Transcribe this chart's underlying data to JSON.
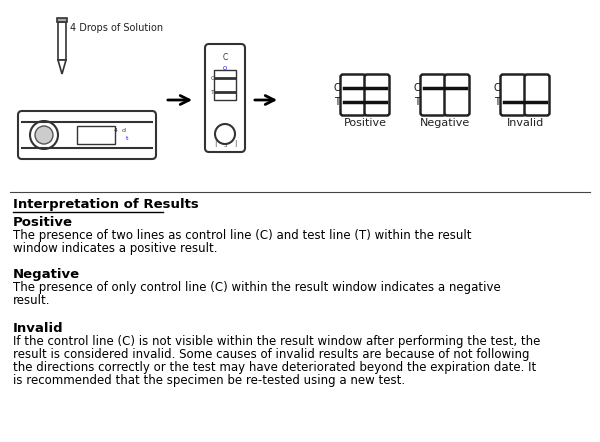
{
  "bg_color": "#ffffff",
  "interpretation_title": "Interpretation of Results",
  "sections": [
    {
      "heading": "Positive",
      "text": "The presence of two lines as control line (C) and test line (T) within the result\nwindow indicates a positive result."
    },
    {
      "heading": "Negative",
      "text": "The presence of only control line (C) within the result window indicates a negative\nresult."
    },
    {
      "heading": "Invalid",
      "text": "If the control line (C) is not visible within the result window after performing the test, the\nresult is considered invalid. Some causes of invalid results are because of not following\nthe directions correctly or the test may have deteriorated beyond the expiration date. It\nis recommended that the specimen be re-tested using a new test."
    }
  ],
  "text_color": "#000000",
  "heading_bold_size": 9.5,
  "body_size": 8.5,
  "title_size": 9.5,
  "result_labels": [
    "Positive",
    "Negative",
    "Invalid"
  ],
  "result_show_c": [
    true,
    true,
    false
  ],
  "result_show_t": [
    true,
    false,
    true
  ],
  "drops_label": "4 Drops of Solution"
}
